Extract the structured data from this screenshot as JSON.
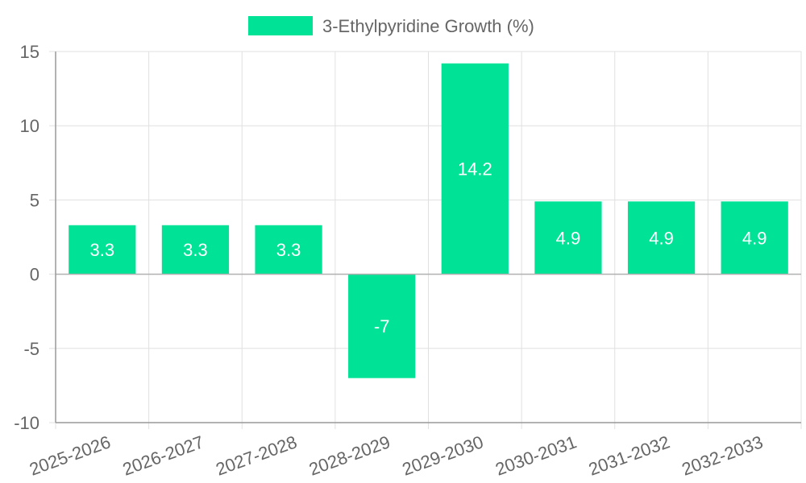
{
  "chart_data": {
    "type": "bar",
    "categories": [
      "2025-2026",
      "2026-2027",
      "2027-2028",
      "2028-2029",
      "2029-2030",
      "2030-2031",
      "2031-2032",
      "2032-2033"
    ],
    "series": [
      {
        "name": "3-Ethylpyridine Growth (%)",
        "values": [
          3.3,
          3.3,
          3.3,
          -7,
          14.2,
          4.9,
          4.9,
          4.9
        ]
      }
    ],
    "ylim": [
      -10,
      15
    ],
    "yticks": [
      15,
      10,
      5,
      0,
      -5,
      -10
    ],
    "grid": true,
    "legend_position": "top",
    "data_labels": true
  },
  "colors": {
    "bar": "#00e396",
    "grid": "#e0e0e0",
    "axis": "#999999",
    "text": "#666666",
    "data_label": "#ffffff"
  }
}
